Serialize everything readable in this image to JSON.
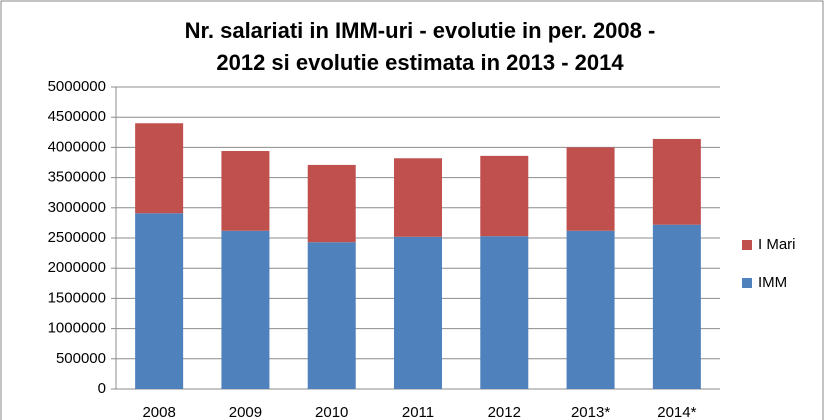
{
  "chart_data": {
    "type": "stacked_bar",
    "title": [
      "Nr. salariati  in IMM-uri - evolutie in per. 2008 -",
      "2012 si evolutie estimata in 2013 - 2014"
    ],
    "categories": [
      "2008",
      "2009",
      "2010",
      "2011",
      "2012",
      "2013*",
      "2014*"
    ],
    "series": [
      {
        "name": "IMM",
        "color": "#4f81bd",
        "values": [
          2910000,
          2620000,
          2430000,
          2520000,
          2530000,
          2620000,
          2720000
        ]
      },
      {
        "name": "I Mari",
        "color": "#c0504d",
        "values": [
          1490000,
          1320000,
          1280000,
          1300000,
          1330000,
          1380000,
          1420000
        ]
      }
    ],
    "ylim": [
      0,
      5000000
    ],
    "yticks": [
      0,
      500000,
      1000000,
      1500000,
      2000000,
      2500000,
      3000000,
      3500000,
      4000000,
      4500000,
      5000000
    ],
    "grid": true,
    "legend": "right"
  }
}
